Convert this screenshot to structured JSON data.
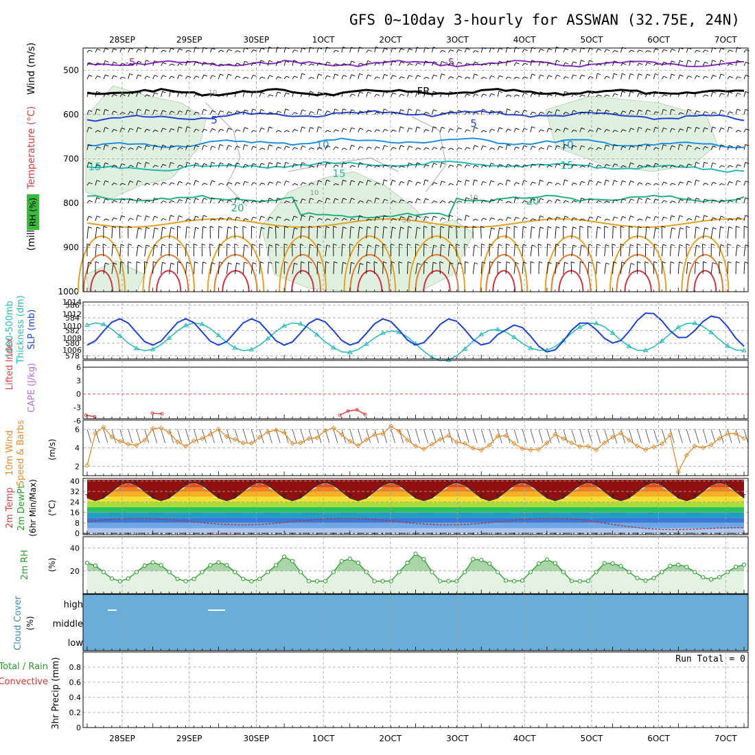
{
  "title": "GFS 0~10day 3-hourly for ASSWAN (32.75E, 24N)",
  "date_labels": [
    "28SEP",
    "29SEP",
    "30SEP",
    "1OCT",
    "2OCT",
    "3OCT",
    "4OCT",
    "5OCT",
    "6OCT",
    "7OCT"
  ],
  "colors": {
    "axis": "#000000",
    "grid": "#a0a0a0",
    "rh_fill": "#dff0df",
    "slp": "#1b3fd0",
    "thick": "#22b8b8",
    "lifted": "#e04040",
    "cape": "#b070d0",
    "wind": "#e08a2c",
    "rh2m": "#2a9a2a",
    "cloud": "#6aaed8",
    "precip_total": "#2a9a2a",
    "precip_conv": "#e03030",
    "temp_fill": "#a02020"
  },
  "chart_data": [
    {
      "id": "upper_air",
      "type": "heatmap",
      "ylabel_parts": [
        "Wind (m/s)",
        "Temperature (°C)",
        "RH (%)",
        "(millibars)"
      ],
      "yticks": [
        500,
        600,
        700,
        800,
        900,
        1000
      ],
      "ylim": [
        450,
        1000
      ],
      "contour_labels": [
        "-5",
        "-5",
        "FR",
        "5",
        "5",
        "10",
        "10",
        "15",
        "15",
        "15",
        "20",
        "20",
        "10",
        "10",
        "10",
        "30"
      ],
      "temp_contours": [
        {
          "label": "-5",
          "color": "#8a2bc2",
          "p": 485
        },
        {
          "label": "FR",
          "color": "#000000",
          "p": 550
        },
        {
          "label": "5",
          "color": "#2040d0",
          "p": 610
        },
        {
          "label": "10",
          "color": "#1e90e0",
          "p": 672
        },
        {
          "label": "15",
          "color": "#20b8b0",
          "p": 725
        },
        {
          "label": "20",
          "color": "#20b080",
          "p": 790
        }
      ]
    },
    {
      "id": "slp_thickness",
      "type": "line",
      "ylabel_left": "1000-500mb Thickness (dm)",
      "ylabel_right": "SLP (mb)",
      "yticks_left": [
        578,
        580,
        582,
        584,
        586
      ],
      "yticks_right": [
        1006,
        1008,
        1010,
        1012,
        1014
      ],
      "ylim_left": [
        577.5,
        586.5
      ],
      "ylim_right": [
        1004.5,
        1014
      ]
    },
    {
      "id": "instability",
      "type": "line",
      "ylabel_a": "Lifted Index",
      "ylabel_b": "CAPE (J/kg)",
      "yticks": [
        "6",
        "3",
        "0",
        "-3",
        "-6"
      ]
    },
    {
      "id": "wind10m",
      "type": "line",
      "ylabel_a": "10m Wind",
      "ylabel_b": "Speed & Barbs",
      "units": "(m/s)",
      "yticks": [
        2,
        4,
        6
      ],
      "ylim": [
        1,
        7
      ]
    },
    {
      "id": "temp2m",
      "type": "area",
      "ylabel_a": "2m Temp",
      "ylabel_b": "2m DewPt",
      "ylabel_c": "(6hr Min/Max)",
      "units": "(°C)",
      "yticks": [
        0,
        8,
        16,
        24,
        32,
        40
      ],
      "ylim": [
        -1,
        42
      ]
    },
    {
      "id": "rh2m",
      "type": "area",
      "ylabel_a": "2m RH",
      "units": "(%)",
      "yticks": [
        20,
        40
      ],
      "ylim": [
        0,
        50
      ]
    },
    {
      "id": "cloud",
      "type": "heatmap",
      "ylabel_a": "Cloud Cover",
      "units": "(%)",
      "levels": [
        "high",
        "middle",
        "low"
      ]
    },
    {
      "id": "precip",
      "type": "bar",
      "ylabel_a": "Total / Rain",
      "ylabel_b": "Convective",
      "ylabel_c": "3hr Precip (mm)",
      "yticks": [
        "0",
        "0.2",
        "0.4",
        "0.6",
        "0.8"
      ],
      "ylim": [
        0,
        1
      ],
      "run_total": "Run Total = 0"
    }
  ]
}
